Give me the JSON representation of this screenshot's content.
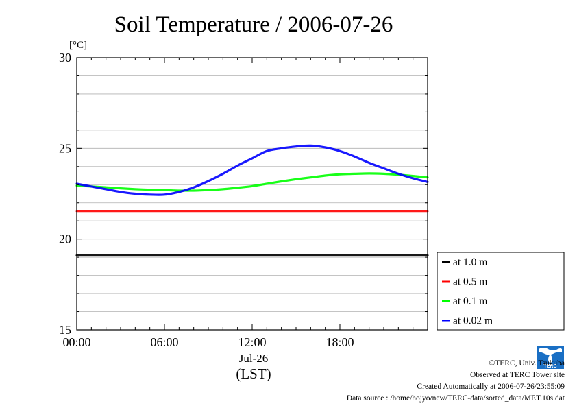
{
  "chart_data": {
    "type": "line",
    "title": "Soil Temperature / 2006-07-26",
    "ylabel": "[°C]",
    "ylim": [
      15,
      30
    ],
    "yticks": [
      15,
      20,
      25,
      30
    ],
    "xlim": [
      0,
      24
    ],
    "xticks": [
      0,
      6,
      12,
      18
    ],
    "xtick_labels": [
      "00:00",
      "06:00",
      "12:00",
      "18:00"
    ],
    "xdate_label": "Jul-26",
    "xunit_label": "(LST)",
    "grid": true,
    "legend_position": "right",
    "x": [
      0,
      1,
      2,
      3,
      4,
      5,
      6,
      7,
      8,
      9,
      10,
      11,
      12,
      13,
      14,
      15,
      16,
      17,
      18,
      19,
      20,
      21,
      22,
      23,
      24
    ],
    "series": [
      {
        "name": "at 1.0 m",
        "color": "#000000",
        "values": [
          19.1,
          19.1,
          19.1,
          19.1,
          19.1,
          19.1,
          19.1,
          19.1,
          19.1,
          19.1,
          19.1,
          19.1,
          19.1,
          19.1,
          19.1,
          19.1,
          19.1,
          19.1,
          19.1,
          19.1,
          19.1,
          19.1,
          19.1,
          19.1,
          19.1
        ]
      },
      {
        "name": "at 0.5 m",
        "color": "#ff0000",
        "values": [
          21.55,
          21.55,
          21.55,
          21.55,
          21.55,
          21.55,
          21.55,
          21.55,
          21.55,
          21.55,
          21.55,
          21.55,
          21.55,
          21.55,
          21.55,
          21.55,
          21.55,
          21.55,
          21.55,
          21.55,
          21.55,
          21.55,
          21.55,
          21.55,
          21.55
        ]
      },
      {
        "name": "at 0.1 m",
        "color": "#00ff00",
        "values": [
          22.95,
          22.9,
          22.85,
          22.8,
          22.75,
          22.72,
          22.7,
          22.67,
          22.67,
          22.7,
          22.75,
          22.83,
          22.92,
          23.05,
          23.18,
          23.3,
          23.4,
          23.5,
          23.57,
          23.6,
          23.62,
          23.6,
          23.55,
          23.48,
          23.4
        ]
      },
      {
        "name": "at 0.02 m",
        "color": "#0000ff",
        "values": [
          23.05,
          22.9,
          22.75,
          22.6,
          22.5,
          22.45,
          22.45,
          22.6,
          22.85,
          23.2,
          23.6,
          24.05,
          24.45,
          24.85,
          25.0,
          25.1,
          25.15,
          25.05,
          24.85,
          24.55,
          24.2,
          23.9,
          23.6,
          23.35,
          23.15
        ]
      }
    ]
  },
  "footer": {
    "copyright": "©TERC, Univ. Tsukuba",
    "site": "Observed at TERC Tower site",
    "created": "Created Automatically at 2006-07-26/23:55:09",
    "source": "Data source : /home/hojyo/new/TERC-data/sorted_data/MET.10s.dat"
  },
  "logo": {
    "text": "TERC",
    "color": "#1a6fc4"
  }
}
